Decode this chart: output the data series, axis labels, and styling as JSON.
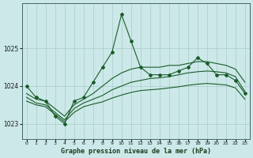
{
  "title": "Graphe pression niveau de la mer (hPa)",
  "background_color": "#cce8e8",
  "grid_color": "#aacccc",
  "line_color": "#1a5c2a",
  "xlim": [
    -0.5,
    23.5
  ],
  "ylim": [
    1022.6,
    1026.2
  ],
  "yticks": [
    1023,
    1024,
    1025
  ],
  "xticks": [
    0,
    1,
    2,
    3,
    4,
    5,
    6,
    7,
    8,
    9,
    10,
    11,
    12,
    13,
    14,
    15,
    16,
    17,
    18,
    19,
    20,
    21,
    22,
    23
  ],
  "series_jagged": {
    "x": [
      0,
      1,
      2,
      3,
      4,
      5,
      6,
      7,
      8,
      9,
      10,
      11,
      12,
      13,
      14,
      15,
      16,
      17,
      18,
      19,
      20,
      21,
      22,
      23
    ],
    "y": [
      1024.0,
      1023.7,
      1023.6,
      1023.2,
      1023.0,
      1023.6,
      1023.7,
      1024.1,
      1024.5,
      1024.9,
      1025.9,
      1025.2,
      1024.5,
      1024.3,
      1024.3,
      1024.3,
      1024.4,
      1024.5,
      1024.75,
      1024.6,
      1024.3,
      1024.3,
      1024.15,
      1023.8
    ]
  },
  "series_smooth_top": {
    "x": [
      0,
      1,
      2,
      3,
      4,
      5,
      6,
      7,
      8,
      9,
      10,
      11,
      12,
      13,
      14,
      15,
      16,
      17,
      18,
      19,
      20,
      21,
      22,
      23
    ],
    "y": [
      1023.8,
      1023.65,
      1023.6,
      1023.4,
      1023.2,
      1023.5,
      1023.65,
      1023.8,
      1024.0,
      1024.2,
      1024.35,
      1024.45,
      1024.5,
      1024.5,
      1024.5,
      1024.55,
      1024.55,
      1024.6,
      1024.65,
      1024.65,
      1024.6,
      1024.55,
      1024.45,
      1024.1
    ]
  },
  "series_smooth_mid": {
    "x": [
      0,
      1,
      2,
      3,
      4,
      5,
      6,
      7,
      8,
      9,
      10,
      11,
      12,
      13,
      14,
      15,
      16,
      17,
      18,
      19,
      20,
      21,
      22,
      23
    ],
    "y": [
      1023.7,
      1023.55,
      1023.5,
      1023.3,
      1023.1,
      1023.4,
      1023.55,
      1023.65,
      1023.75,
      1023.9,
      1024.0,
      1024.1,
      1024.15,
      1024.2,
      1024.22,
      1024.25,
      1024.3,
      1024.35,
      1024.38,
      1024.4,
      1024.38,
      1024.35,
      1024.25,
      1023.85
    ]
  },
  "series_smooth_bot": {
    "x": [
      0,
      1,
      2,
      3,
      4,
      5,
      6,
      7,
      8,
      9,
      10,
      11,
      12,
      13,
      14,
      15,
      16,
      17,
      18,
      19,
      20,
      21,
      22,
      23
    ],
    "y": [
      1023.6,
      1023.5,
      1023.45,
      1023.25,
      1023.05,
      1023.3,
      1023.45,
      1023.52,
      1023.58,
      1023.68,
      1023.76,
      1023.83,
      1023.88,
      1023.9,
      1023.92,
      1023.95,
      1023.98,
      1024.02,
      1024.05,
      1024.07,
      1024.05,
      1024.03,
      1023.95,
      1023.65
    ]
  }
}
